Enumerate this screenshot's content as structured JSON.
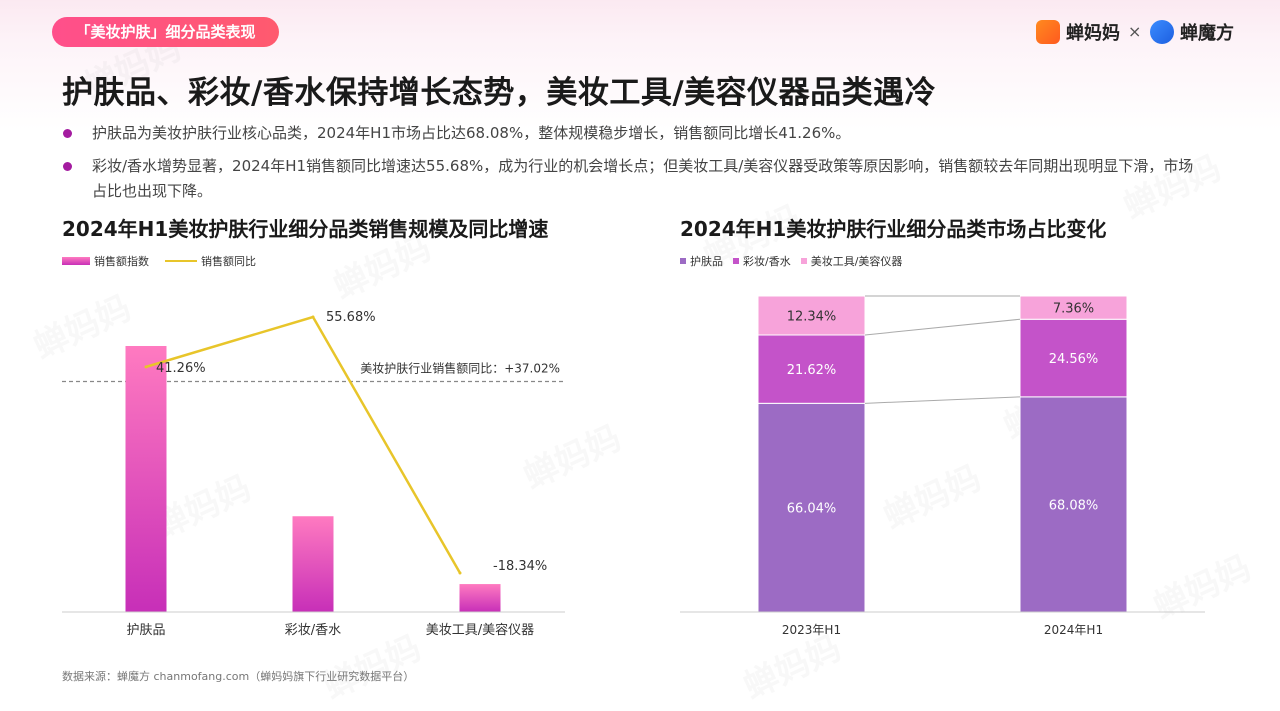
{
  "header": {
    "tag": "「美妆护肤」细分品类表现",
    "brand_a": "蝉妈妈",
    "brand_separator": "×",
    "brand_b": "蝉魔方"
  },
  "headline": "护肤品、彩妆/香水保持增长态势，美妆工具/美容仪器品类遇冷",
  "bullets": [
    "护肤品为美妆护肤行业核心品类，2024年H1市场占比达68.08%，整体规模稳步增长，销售额同比增长41.26%。",
    "彩妆/香水增势显著，2024年H1销售额同比增速达55.68%，成为行业的机会增长点；但美妆工具/美容仪器受政策等原因影响，销售额较去年同期出现明显下滑，市场占比也出现下降。"
  ],
  "source": "数据来源：蝉魔方 chanmofang.com（蝉妈妈旗下行业研究数据平台）",
  "watermark": "蝉妈妈",
  "colors": {
    "accent": "#ff4f8b",
    "bar_top": "#ff7ac0",
    "bar_bottom": "#c72fb8",
    "line": "#e8c52a",
    "skincare": "#9c6bc4",
    "makeup": "#c453c9",
    "tools": "#f7a3da"
  },
  "chart_data": [
    {
      "type": "bar",
      "title": "2024年H1美妆护肤行业细分品类销售规模及同比增速",
      "categories": [
        "护肤品",
        "彩妆/香水",
        "美妆工具/美容仪器"
      ],
      "series": [
        {
          "name": "销售额指数",
          "type": "bar",
          "values": [
            100,
            36,
            10.5
          ]
        },
        {
          "name": "销售额同比",
          "type": "line",
          "values": [
            41.26,
            55.68,
            -18.34
          ],
          "labels": [
            "41.26%",
            "55.68%",
            "-18.34%"
          ]
        }
      ],
      "reference_line": {
        "label": "美妆护肤行业销售额同比：+37.02%",
        "value": 37.02
      },
      "legend_position": "top-left",
      "grid": false
    },
    {
      "type": "bar",
      "stacked": true,
      "title": "2024年H1美妆护肤行业细分品类市场占比变化",
      "categories": [
        "2023年H1",
        "2024年H1"
      ],
      "series": [
        {
          "name": "护肤品",
          "values": [
            66.04,
            68.08
          ],
          "labels": [
            "66.04%",
            "68.08%"
          ]
        },
        {
          "name": "彩妆/香水",
          "values": [
            21.62,
            24.56
          ],
          "labels": [
            "21.62%",
            "24.56%"
          ]
        },
        {
          "name": "美妆工具/美容仪器",
          "values": [
            12.34,
            7.36
          ],
          "labels": [
            "12.34%",
            "7.36%"
          ]
        }
      ],
      "ylim": [
        0,
        100
      ],
      "legend_position": "top-left",
      "grid": false
    }
  ]
}
